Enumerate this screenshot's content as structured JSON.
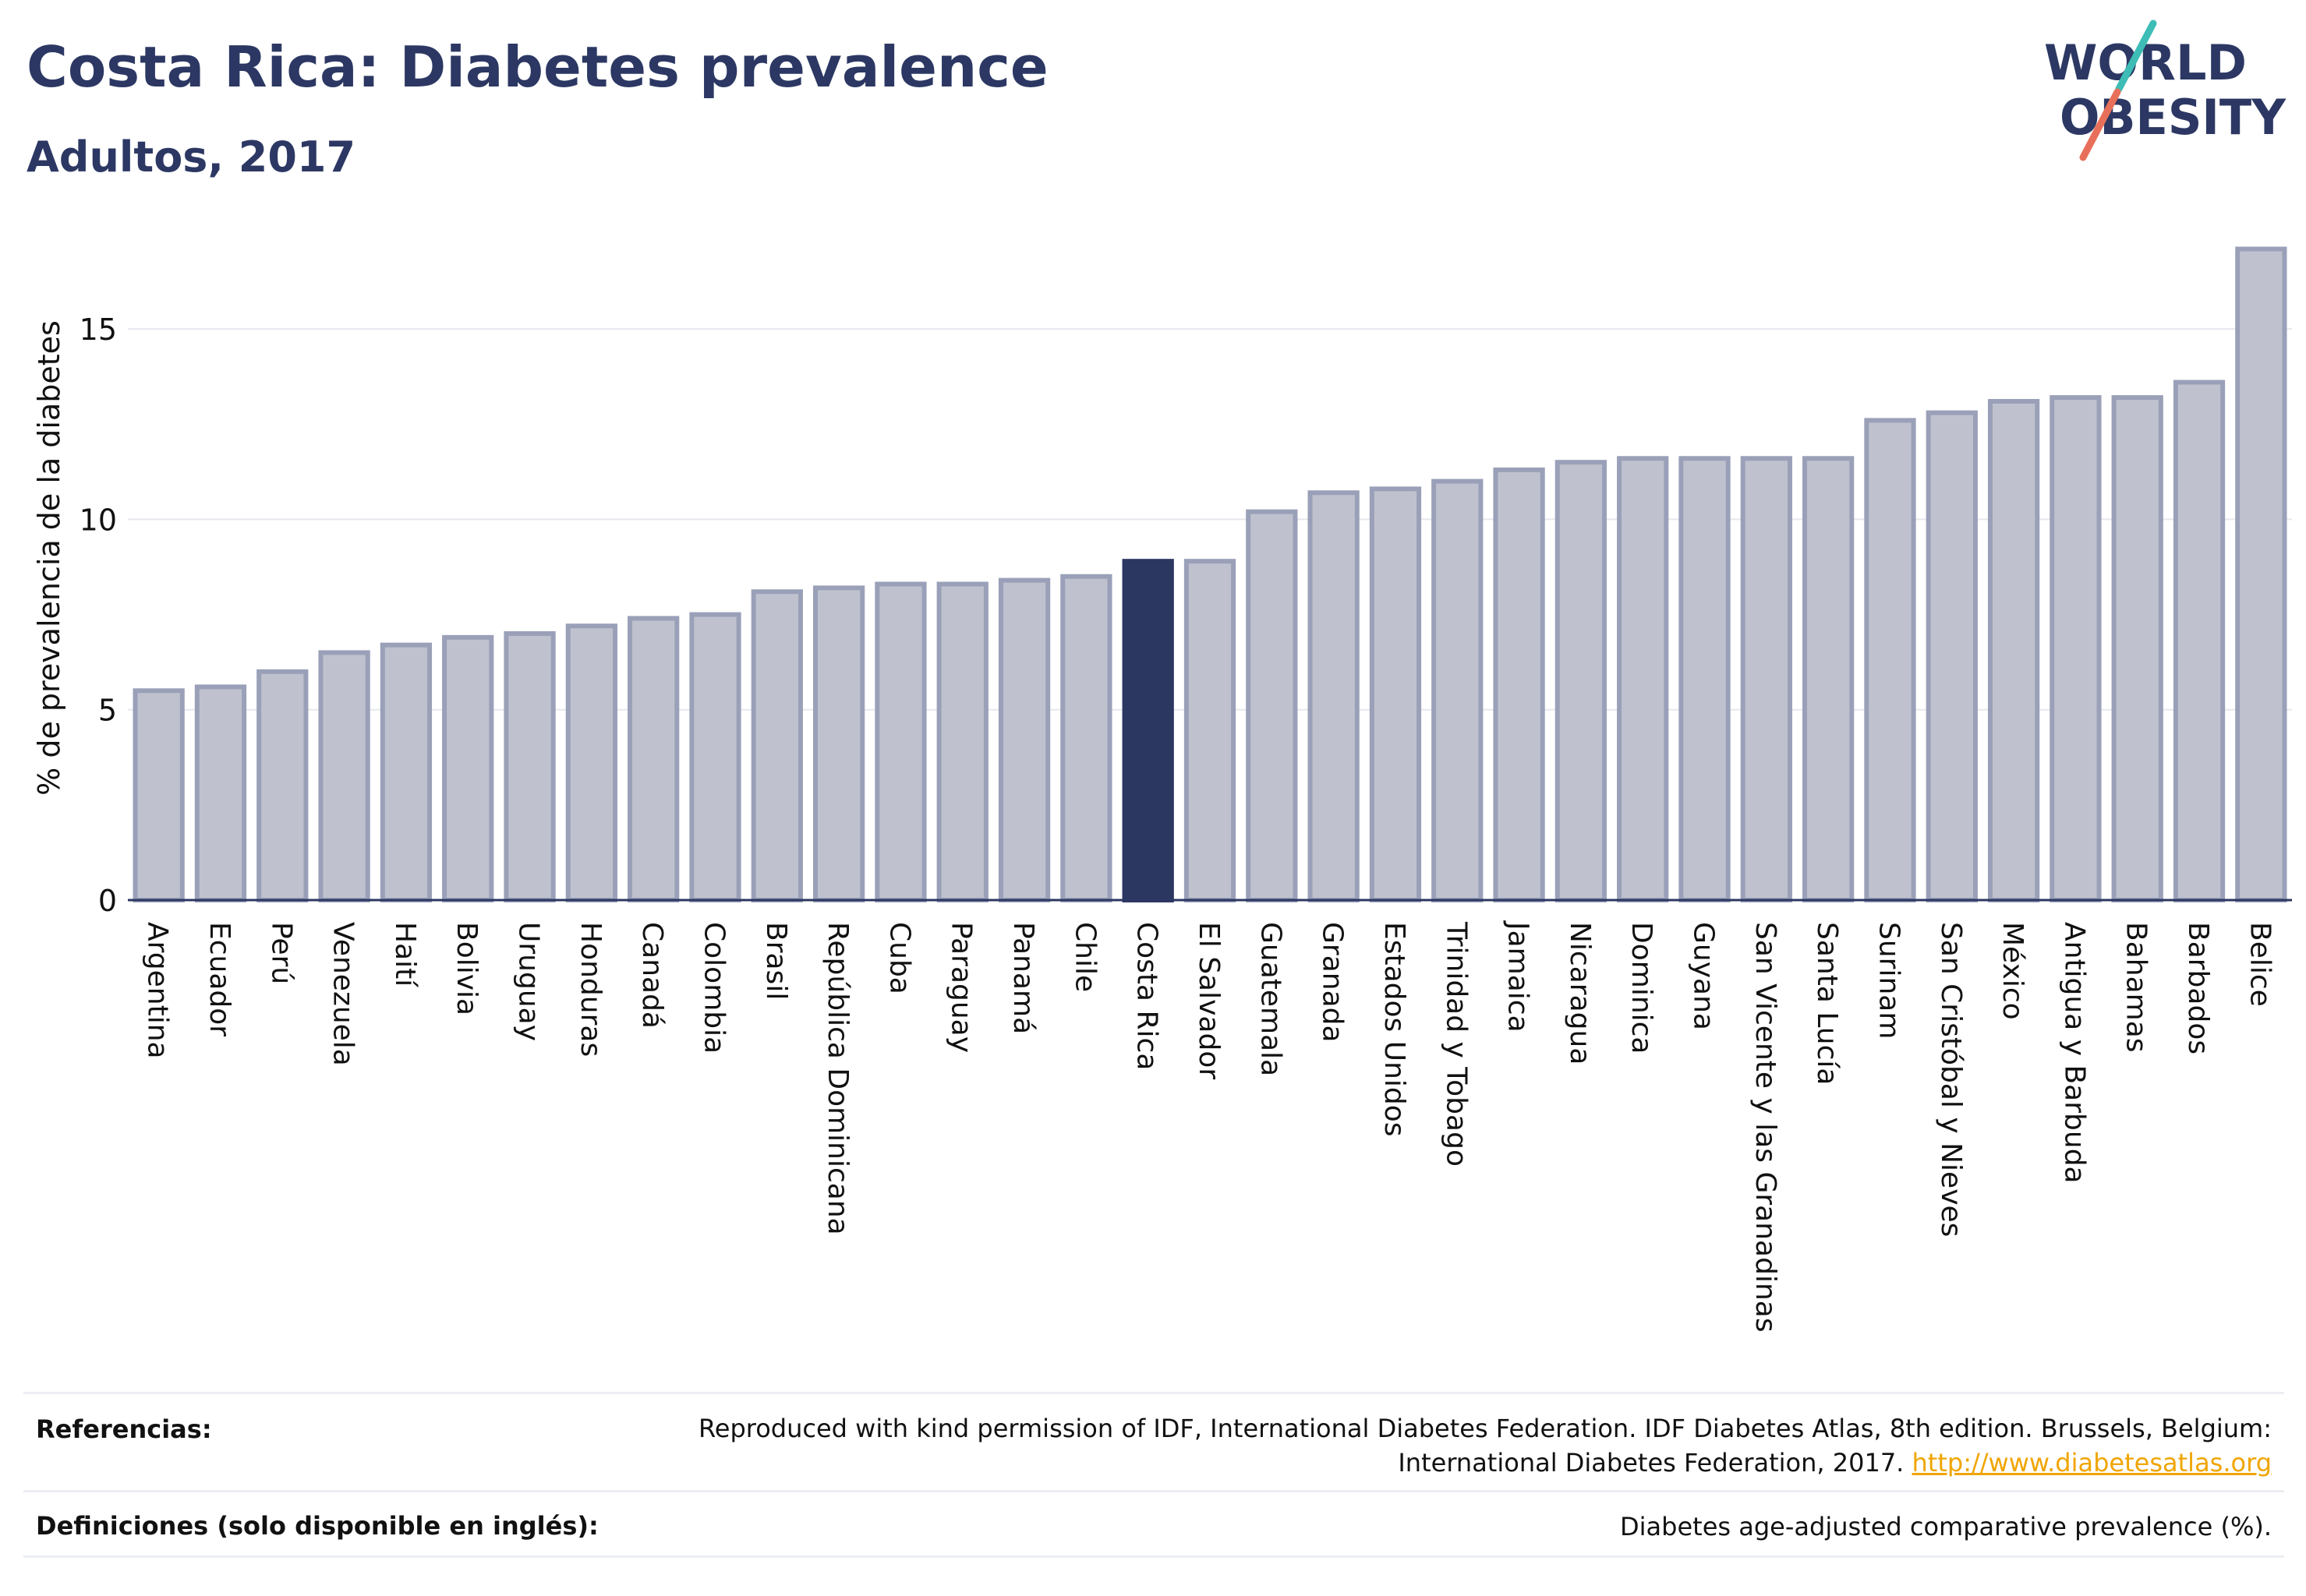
{
  "header": {
    "title": "Costa Rica: Diabetes prevalence",
    "subtitle": "Adultos, 2017"
  },
  "logo": {
    "line1": "WORLD",
    "line2": "OBESITY",
    "colors": {
      "text": "#2c3863",
      "slash_top": "#3dbdb6",
      "slash_bottom": "#e8705a"
    }
  },
  "colors": {
    "bar": "#bfc2ce",
    "bar_border": "#9aa0b8",
    "highlight": "#2b3661",
    "grid": "#e6e8ee",
    "axis": "#2c3863"
  },
  "chart_data": {
    "type": "bar",
    "ylabel": "% de prevalencia de la diabetes",
    "ylim": [
      0,
      17.5
    ],
    "yticks": [
      0,
      5,
      10,
      15
    ],
    "grid": true,
    "highlight": "Costa Rica",
    "categories": [
      "Argentina",
      "Ecuador",
      "Perú",
      "Venezuela",
      "Haití",
      "Bolivia",
      "Uruguay",
      "Honduras",
      "Canadá",
      "Colombia",
      "Brasil",
      "República Dominicana",
      "Cuba",
      "Paraguay",
      "Panamá",
      "Chile",
      "Costa Rica",
      "El Salvador",
      "Guatemala",
      "Granada",
      "Estados Unidos",
      "Trinidad y Tobago",
      "Jamaica",
      "Nicaragua",
      "Dominica",
      "Guyana",
      "San Vicente y las Granadinas",
      "Santa Lucía",
      "Surinam",
      "San Cristóbal y Nieves",
      "México",
      "Antigua y Barbuda",
      "Bahamas",
      "Barbados",
      "Belice"
    ],
    "values": [
      5.5,
      5.6,
      6.0,
      6.5,
      6.7,
      6.9,
      7.0,
      7.2,
      7.4,
      7.5,
      8.1,
      8.2,
      8.3,
      8.3,
      8.4,
      8.5,
      8.9,
      8.9,
      10.2,
      10.7,
      10.8,
      11.0,
      11.3,
      11.5,
      11.6,
      11.6,
      11.6,
      11.6,
      12.6,
      12.8,
      13.1,
      13.2,
      13.2,
      13.6,
      17.1
    ]
  },
  "footer": {
    "references_label": "Referencias:",
    "references_text_line1": "Reproduced with kind permission of IDF, International Diabetes Federation. IDF Diabetes Atlas, 8th edition. Brussels, Belgium:",
    "references_text_line2": "International Diabetes Federation, 2017.",
    "references_link": "http://www.diabetesatlas.org",
    "definitions_label": "Definiciones (solo disponible en inglés):",
    "definitions_text": "Diabetes age-adjusted comparative prevalence (%)."
  }
}
